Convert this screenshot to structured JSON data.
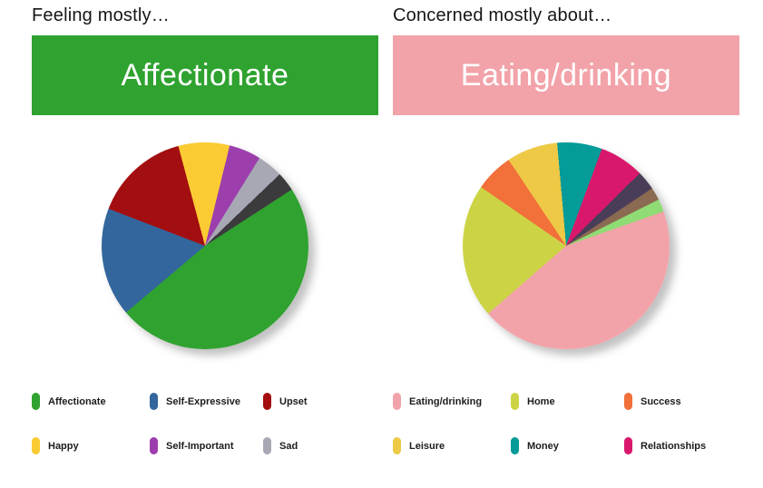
{
  "panels": [
    {
      "title": "Feeling mostly…",
      "banner_label": "Affectionate",
      "banner_color": "#2fa230",
      "legend": [
        {
          "label": "Affectionate",
          "color": "#2fa230"
        },
        {
          "label": "Self-Expressive",
          "color": "#33669c"
        },
        {
          "label": "Upset",
          "color": "#a30e10"
        },
        {
          "label": "Happy",
          "color": "#fbcb33"
        },
        {
          "label": "Self-Important",
          "color": "#9c3fad"
        },
        {
          "label": "Sad",
          "color": "#a8a8b4"
        }
      ]
    },
    {
      "title": "Concerned mostly about…",
      "banner_label": "Eating/drinking",
      "banner_color": "#f2a3a9",
      "legend": [
        {
          "label": "Eating/drinking",
          "color": "#f2a3a9"
        },
        {
          "label": "Home",
          "color": "#ccd446"
        },
        {
          "label": "Success",
          "color": "#f2703a"
        },
        {
          "label": "Leisure",
          "color": "#edc946"
        },
        {
          "label": "Money",
          "color": "#049b98"
        },
        {
          "label": "Relationships",
          "color": "#d9186c"
        }
      ]
    }
  ],
  "chart_data": [
    {
      "type": "pie",
      "title": "Feeling mostly…",
      "selected": "Affectionate",
      "units": "percent",
      "legend_position": "bottom",
      "start_angle_deg": -15,
      "slices": [
        {
          "label": "Happy",
          "value": 8,
          "color": "#fbcb33"
        },
        {
          "label": "Self-Important",
          "value": 5,
          "color": "#9c3fad"
        },
        {
          "label": "Sad",
          "value": 4,
          "color": "#a8a8b4"
        },
        {
          "label": null,
          "value": 3,
          "color": "#3b3b3d"
        },
        {
          "label": "Affectionate",
          "value": 48,
          "color": "#2fa230"
        },
        {
          "label": "Self-Expressive",
          "value": 17,
          "color": "#33669c"
        },
        {
          "label": "Upset",
          "value": 15,
          "color": "#a30e10"
        }
      ]
    },
    {
      "type": "pie",
      "title": "Concerned mostly about…",
      "selected": "Eating/drinking",
      "units": "percent",
      "legend_position": "bottom",
      "start_angle_deg": -5,
      "slices": [
        {
          "label": "Money",
          "value": 7,
          "color": "#049b98"
        },
        {
          "label": "Relationships",
          "value": 7,
          "color": "#d9186c"
        },
        {
          "label": null,
          "value": 3,
          "color": "#4a3d59"
        },
        {
          "label": null,
          "value": 2,
          "color": "#8a6a50"
        },
        {
          "label": null,
          "value": 2,
          "color": "#8fdb74"
        },
        {
          "label": "Eating/drinking",
          "value": 44,
          "color": "#f2a3a9"
        },
        {
          "label": "Home",
          "value": 21,
          "color": "#ccd446"
        },
        {
          "label": "Success",
          "value": 6,
          "color": "#f2703a"
        },
        {
          "label": "Leisure",
          "value": 8,
          "color": "#edc946"
        }
      ]
    }
  ]
}
